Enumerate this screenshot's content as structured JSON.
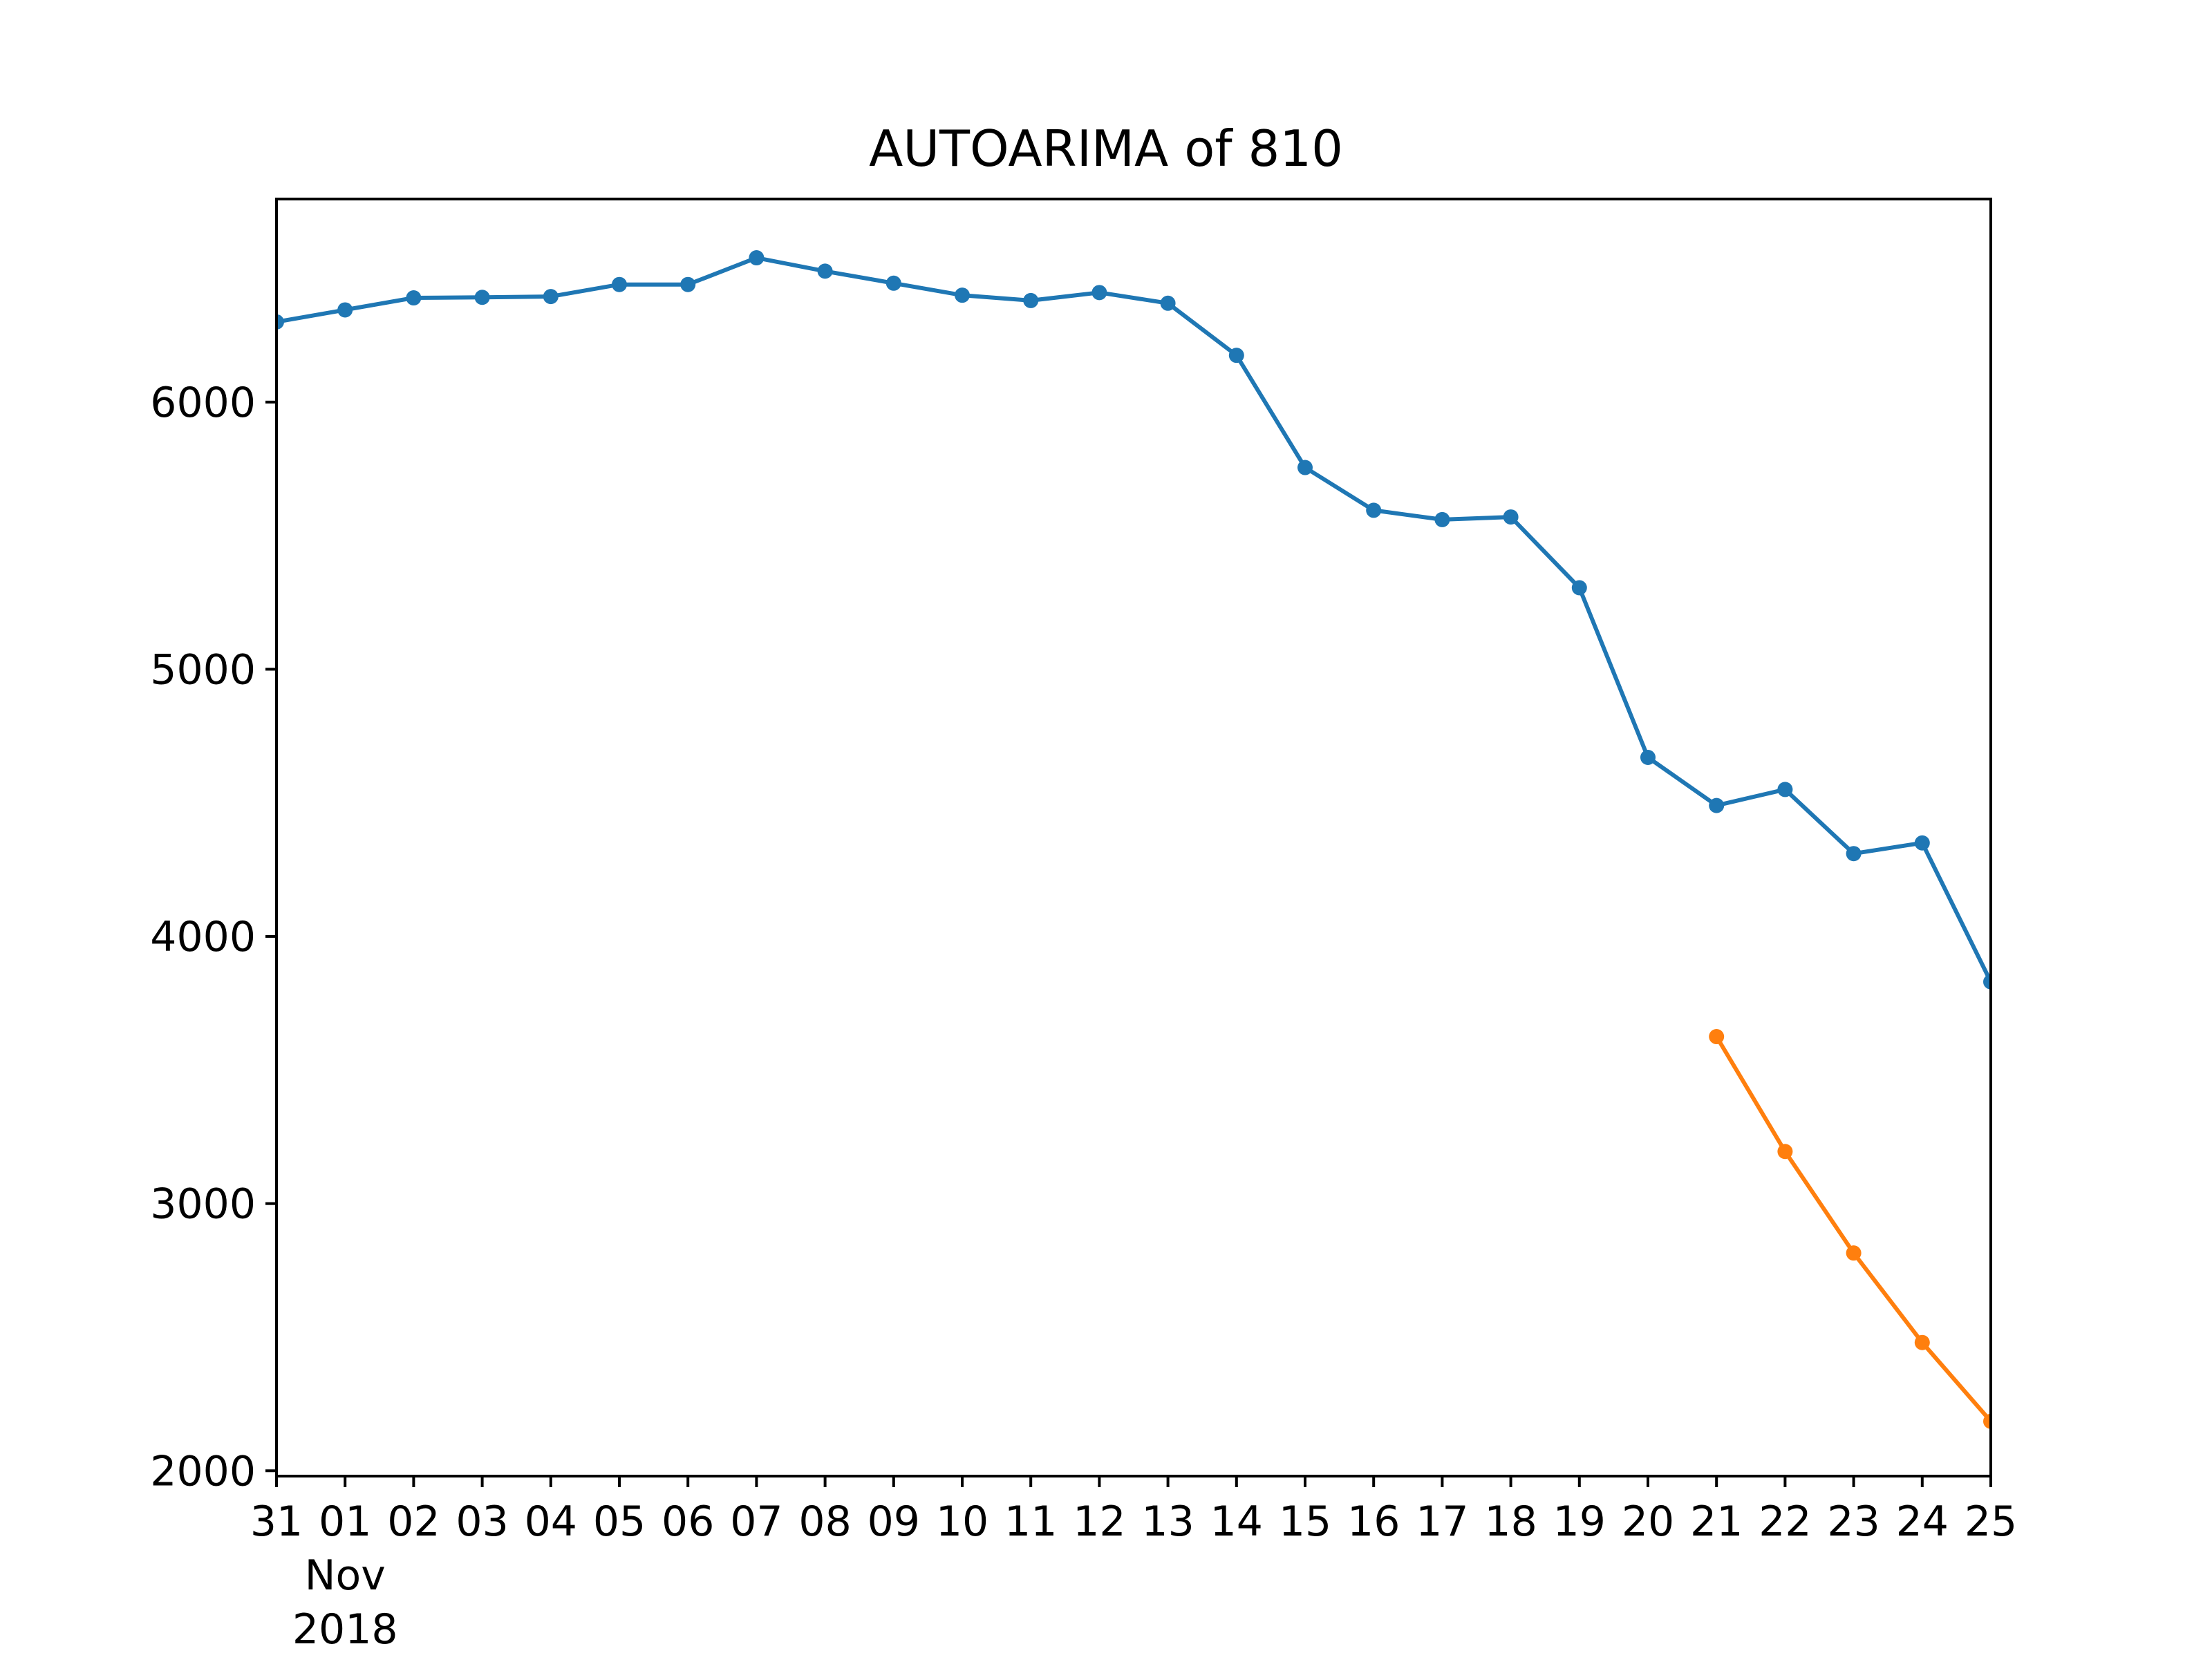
{
  "chart_data": {
    "type": "line",
    "title": "AUTOARIMA of 810",
    "xlabel": "",
    "ylabel": "",
    "x": [
      "2018-10-31",
      "2018-11-01",
      "2018-11-02",
      "2018-11-03",
      "2018-11-04",
      "2018-11-05",
      "2018-11-06",
      "2018-11-07",
      "2018-11-08",
      "2018-11-09",
      "2018-11-10",
      "2018-11-11",
      "2018-11-12",
      "2018-11-13",
      "2018-11-14",
      "2018-11-15",
      "2018-11-16",
      "2018-11-17",
      "2018-11-18",
      "2018-11-19",
      "2018-11-20",
      "2018-11-21",
      "2018-11-22",
      "2018-11-23",
      "2018-11-24",
      "2018-11-25"
    ],
    "xtick_labels": [
      "31",
      "01",
      "02",
      "03",
      "04",
      "05",
      "06",
      "07",
      "08",
      "09",
      "10",
      "11",
      "12",
      "13",
      "14",
      "15",
      "16",
      "17",
      "18",
      "19",
      "20",
      "21",
      "22",
      "23",
      "24",
      "25"
    ],
    "xtick_sublabels": [
      "Nov",
      "2018"
    ],
    "yticks": [
      2000,
      3000,
      4000,
      5000,
      6000
    ],
    "ylim": [
      1980,
      6760
    ],
    "grid": false,
    "series": [
      {
        "color": "#1f77b4",
        "x": [
          "2018-10-31",
          "2018-11-01",
          "2018-11-02",
          "2018-11-03",
          "2018-11-04",
          "2018-11-05",
          "2018-11-06",
          "2018-11-07",
          "2018-11-08",
          "2018-11-09",
          "2018-11-10",
          "2018-11-11",
          "2018-11-12",
          "2018-11-13",
          "2018-11-14",
          "2018-11-15",
          "2018-11-16",
          "2018-11-17",
          "2018-11-18",
          "2018-11-19",
          "2018-11-20",
          "2018-11-21",
          "2018-11-22",
          "2018-11-23",
          "2018-11-24",
          "2018-11-25"
        ],
        "values": [
          6300,
          6345,
          6390,
          6392,
          6395,
          6440,
          6440,
          6540,
          6490,
          6445,
          6400,
          6380,
          6410,
          6370,
          6175,
          5755,
          5595,
          5560,
          5570,
          5305,
          4670,
          4490,
          4550,
          4310,
          4350,
          3830
        ]
      },
      {
        "color": "#ff7f0e",
        "x": [
          "2018-11-21",
          "2018-11-22",
          "2018-11-23",
          "2018-11-24",
          "2018-11-25"
        ],
        "values": [
          3625,
          3195,
          2815,
          2480,
          2185
        ]
      }
    ]
  }
}
